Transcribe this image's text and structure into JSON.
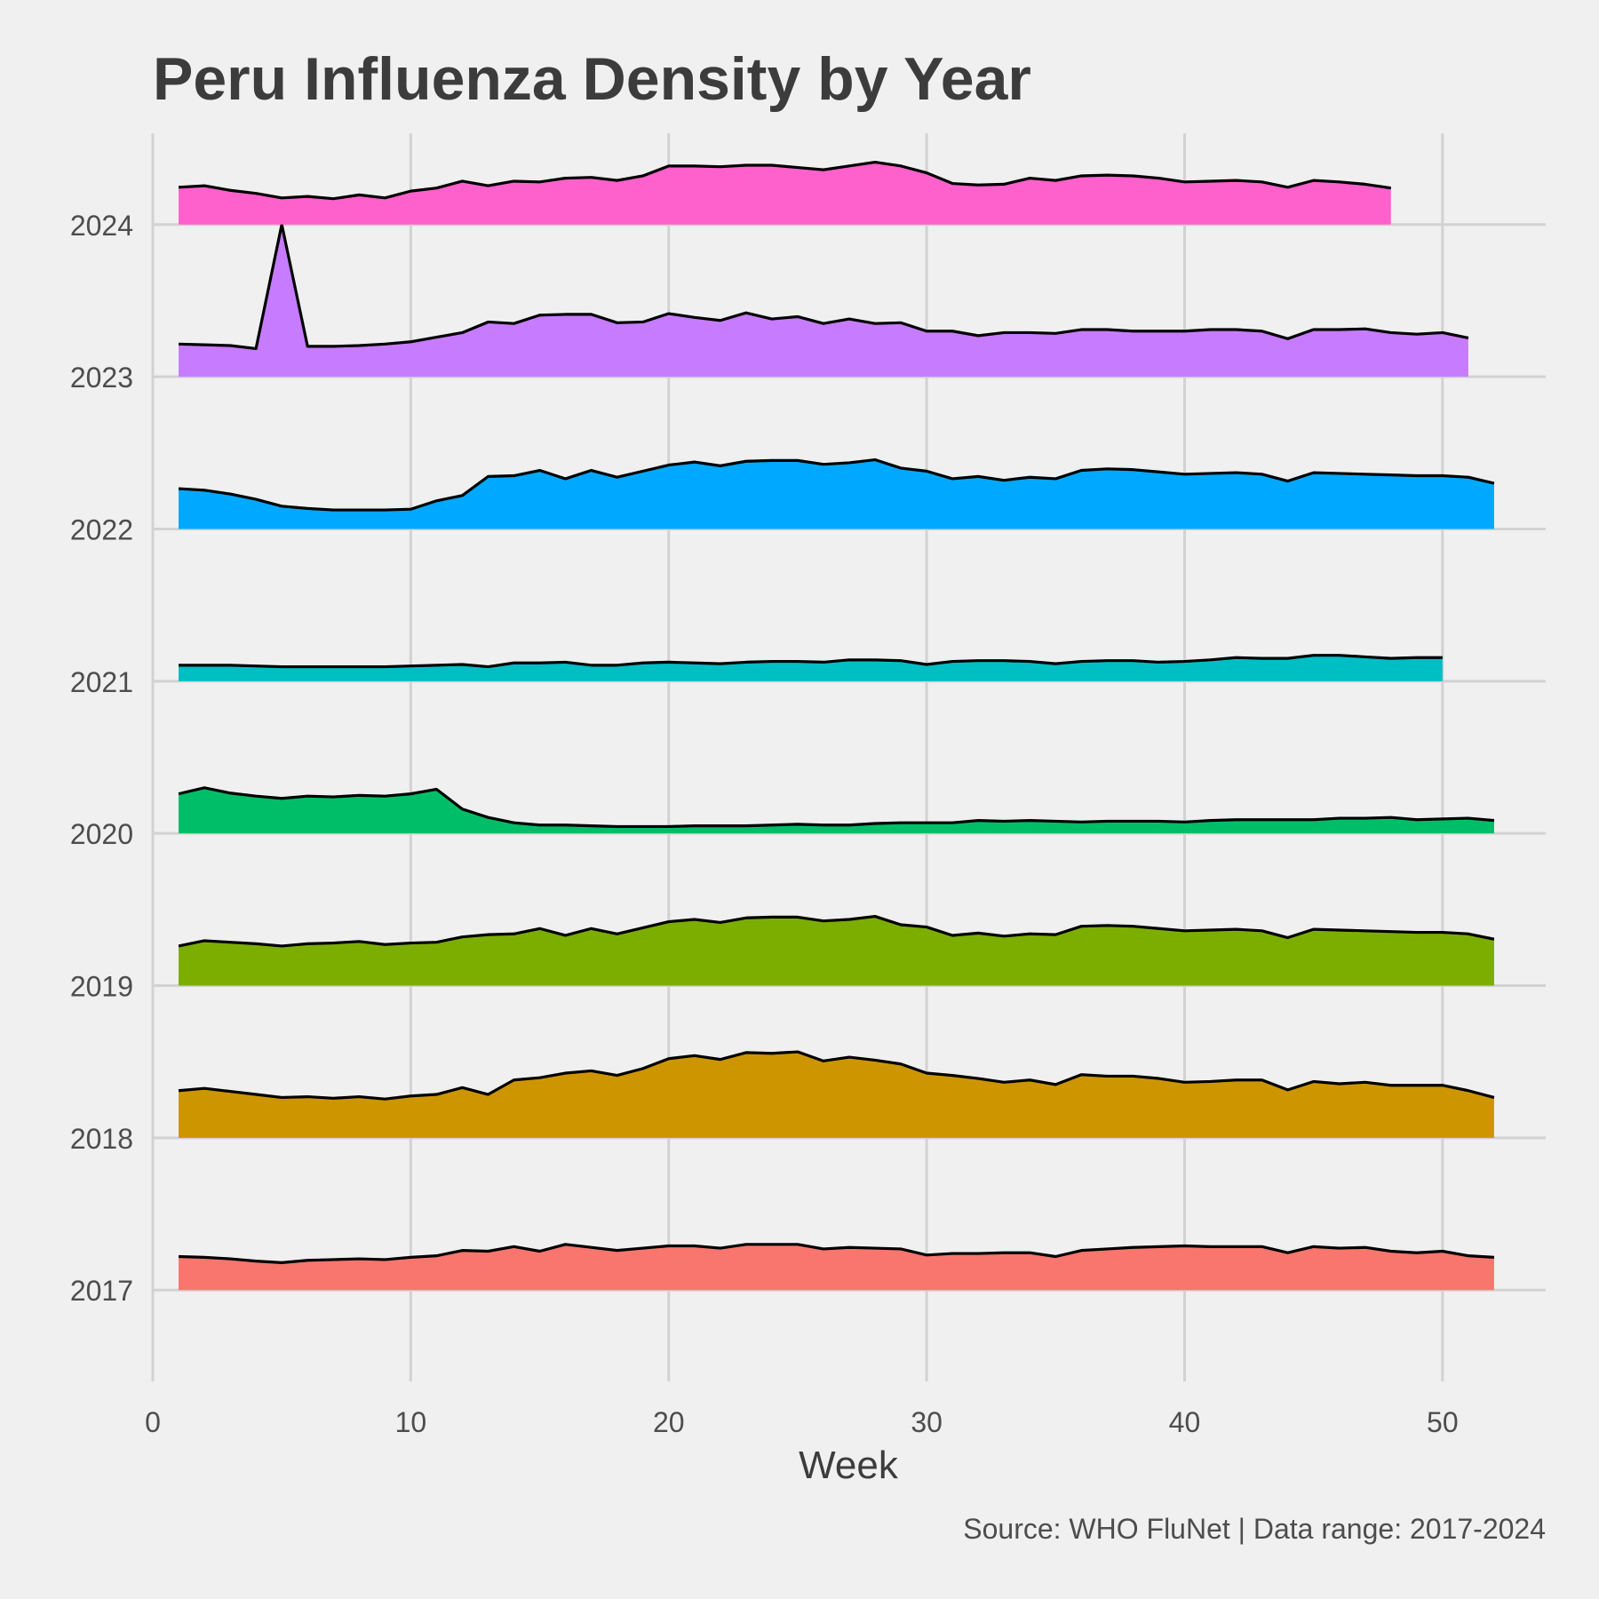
{
  "chart_data": {
    "type": "area",
    "title": "Peru Influenza Density by Year",
    "xlabel": "Week",
    "ylabel": "",
    "caption": "Source: WHO FluNet | Data range: 2017-2024",
    "xlim": [
      0,
      54
    ],
    "ylim": [
      2016.4,
      2024.6
    ],
    "xticks": [
      0,
      10,
      20,
      30,
      40,
      50
    ],
    "yticks": [
      2017,
      2018,
      2019,
      2020,
      2021,
      2022,
      2023,
      2024
    ],
    "grid": true,
    "legend": "none",
    "series": [
      {
        "baseline": 2017,
        "color": "#F8766D",
        "values": [
          0.22,
          0.215,
          0.205,
          0.19,
          0.18,
          0.195,
          0.2,
          0.205,
          0.2,
          0.215,
          0.225,
          0.26,
          0.255,
          0.285,
          0.255,
          0.3,
          0.28,
          0.26,
          0.275,
          0.29,
          0.29,
          0.275,
          0.3,
          0.3,
          0.3,
          0.27,
          0.28,
          0.275,
          0.27,
          0.23,
          0.24,
          0.24,
          0.245,
          0.245,
          0.22,
          0.26,
          0.27,
          0.28,
          0.285,
          0.29,
          0.285,
          0.285,
          0.285,
          0.245,
          0.285,
          0.275,
          0.28,
          0.255,
          0.245,
          0.255,
          0.225,
          0.215
        ]
      },
      {
        "baseline": 2018,
        "color": "#CD9600",
        "values": [
          0.31,
          0.325,
          0.305,
          0.285,
          0.265,
          0.27,
          0.26,
          0.27,
          0.255,
          0.275,
          0.285,
          0.33,
          0.285,
          0.38,
          0.395,
          0.425,
          0.44,
          0.41,
          0.455,
          0.52,
          0.54,
          0.515,
          0.56,
          0.555,
          0.565,
          0.505,
          0.53,
          0.51,
          0.485,
          0.425,
          0.41,
          0.39,
          0.365,
          0.38,
          0.35,
          0.415,
          0.405,
          0.405,
          0.39,
          0.365,
          0.37,
          0.38,
          0.38,
          0.315,
          0.37,
          0.355,
          0.365,
          0.345,
          0.345,
          0.345,
          0.31,
          0.265
        ]
      },
      {
        "baseline": 2019,
        "color": "#7CAE00",
        "values": [
          0.26,
          0.295,
          0.285,
          0.275,
          0.26,
          0.275,
          0.28,
          0.29,
          0.27,
          0.28,
          0.285,
          0.32,
          0.335,
          0.34,
          0.375,
          0.33,
          0.375,
          0.34,
          0.38,
          0.42,
          0.435,
          0.415,
          0.445,
          0.45,
          0.45,
          0.425,
          0.435,
          0.455,
          0.4,
          0.385,
          0.33,
          0.345,
          0.325,
          0.34,
          0.335,
          0.39,
          0.395,
          0.39,
          0.375,
          0.36,
          0.365,
          0.37,
          0.36,
          0.315,
          0.37,
          0.365,
          0.36,
          0.355,
          0.35,
          0.35,
          0.34,
          0.305
        ]
      },
      {
        "baseline": 2020,
        "color": "#00BE67",
        "values": [
          0.26,
          0.3,
          0.265,
          0.245,
          0.23,
          0.245,
          0.24,
          0.25,
          0.245,
          0.26,
          0.29,
          0.16,
          0.105,
          0.07,
          0.055,
          0.055,
          0.05,
          0.045,
          0.045,
          0.045,
          0.05,
          0.05,
          0.05,
          0.055,
          0.06,
          0.055,
          0.055,
          0.065,
          0.07,
          0.07,
          0.07,
          0.085,
          0.08,
          0.085,
          0.08,
          0.075,
          0.08,
          0.08,
          0.08,
          0.075,
          0.085,
          0.09,
          0.09,
          0.09,
          0.09,
          0.1,
          0.1,
          0.105,
          0.09,
          0.095,
          0.1,
          0.085
        ]
      },
      {
        "baseline": 2021,
        "color": "#00BFC4",
        "values": [
          0.105,
          0.105,
          0.105,
          0.1,
          0.095,
          0.095,
          0.095,
          0.095,
          0.095,
          0.1,
          0.105,
          0.11,
          0.095,
          0.12,
          0.12,
          0.125,
          0.105,
          0.105,
          0.12,
          0.125,
          0.12,
          0.115,
          0.125,
          0.13,
          0.13,
          0.125,
          0.14,
          0.14,
          0.135,
          0.11,
          0.13,
          0.135,
          0.135,
          0.13,
          0.115,
          0.13,
          0.135,
          0.135,
          0.125,
          0.13,
          0.14,
          0.155,
          0.15,
          0.15,
          0.17,
          0.17,
          0.16,
          0.15,
          0.155,
          0.155
        ]
      },
      {
        "baseline": 2022,
        "color": "#00A9FF",
        "values": [
          0.265,
          0.255,
          0.23,
          0.195,
          0.15,
          0.135,
          0.125,
          0.125,
          0.125,
          0.13,
          0.185,
          0.22,
          0.345,
          0.35,
          0.385,
          0.33,
          0.385,
          0.34,
          0.38,
          0.42,
          0.44,
          0.415,
          0.445,
          0.45,
          0.45,
          0.425,
          0.435,
          0.455,
          0.4,
          0.38,
          0.33,
          0.345,
          0.32,
          0.34,
          0.33,
          0.385,
          0.395,
          0.39,
          0.375,
          0.36,
          0.365,
          0.37,
          0.36,
          0.315,
          0.37,
          0.365,
          0.36,
          0.355,
          0.35,
          0.35,
          0.34,
          0.3
        ]
      },
      {
        "baseline": 2023,
        "color": "#C77CFF",
        "values": [
          0.215,
          0.21,
          0.205,
          0.185,
          1.0,
          0.2,
          0.2,
          0.205,
          0.215,
          0.23,
          0.26,
          0.29,
          0.36,
          0.35,
          0.405,
          0.41,
          0.41,
          0.355,
          0.36,
          0.415,
          0.39,
          0.37,
          0.42,
          0.38,
          0.395,
          0.35,
          0.38,
          0.35,
          0.355,
          0.3,
          0.3,
          0.27,
          0.29,
          0.29,
          0.285,
          0.31,
          0.31,
          0.3,
          0.3,
          0.3,
          0.31,
          0.31,
          0.3,
          0.25,
          0.31,
          0.31,
          0.315,
          0.29,
          0.28,
          0.29,
          0.255
        ]
      },
      {
        "baseline": 2024,
        "color": "#FF61CC",
        "values": [
          0.245,
          0.255,
          0.225,
          0.205,
          0.175,
          0.185,
          0.17,
          0.195,
          0.175,
          0.22,
          0.24,
          0.285,
          0.255,
          0.285,
          0.28,
          0.305,
          0.31,
          0.29,
          0.32,
          0.385,
          0.385,
          0.38,
          0.39,
          0.39,
          0.375,
          0.36,
          0.385,
          0.41,
          0.385,
          0.34,
          0.27,
          0.26,
          0.265,
          0.305,
          0.29,
          0.32,
          0.325,
          0.32,
          0.305,
          0.28,
          0.285,
          0.29,
          0.28,
          0.245,
          0.29,
          0.28,
          0.265,
          0.24
        ]
      }
    ]
  }
}
